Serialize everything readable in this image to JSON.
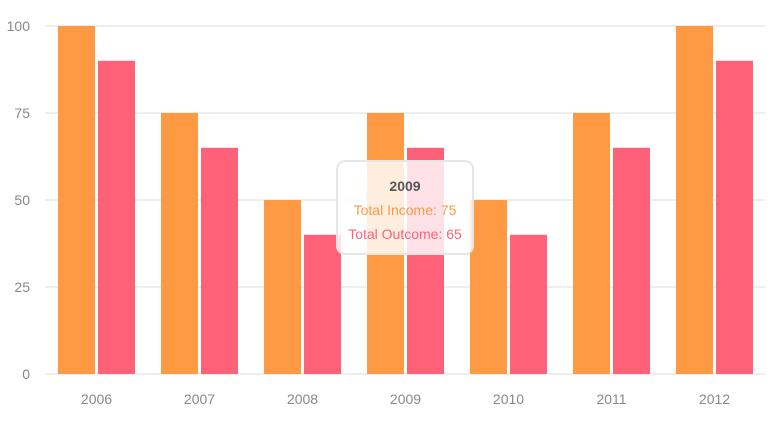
{
  "chart_data": {
    "type": "bar",
    "categories": [
      "2006",
      "2007",
      "2008",
      "2009",
      "2010",
      "2011",
      "2012"
    ],
    "series": [
      {
        "name": "Total Income",
        "values": [
          100,
          75,
          50,
          75,
          50,
          75,
          100
        ],
        "color": "#ff9a44"
      },
      {
        "name": "Total Outcome",
        "values": [
          90,
          65,
          40,
          65,
          40,
          65,
          90
        ],
        "color": "#ff6178"
      }
    ],
    "ylim": [
      0,
      100
    ],
    "yticks": [
      0,
      25,
      50,
      75,
      100
    ],
    "grid": true,
    "title": "",
    "xlabel": "",
    "ylabel": ""
  },
  "tooltip": {
    "title": "2009",
    "income_text": "Total Income: 75",
    "outcome_text": "Total Outcome: 65"
  },
  "colors": {
    "grid": "#dddddd",
    "axis_text": "#888888",
    "income": "#ff9a44",
    "outcome": "#ff6178"
  }
}
